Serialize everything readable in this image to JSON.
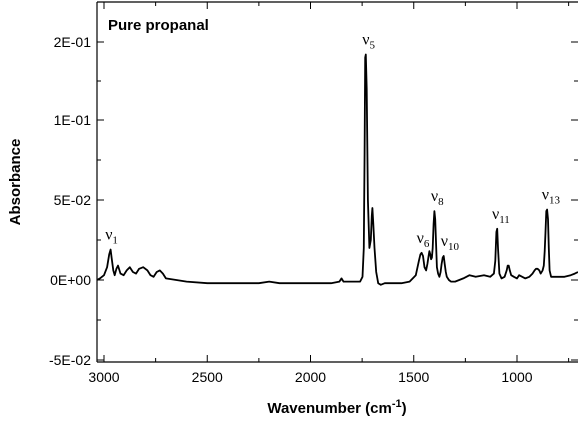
{
  "chart_data": {
    "type": "line",
    "title": "Pure propanal",
    "xlabel": "Wavenumber (cm",
    "xlabel_sup": "-1",
    "xlabel_end": ")",
    "ylabel": "Absorbance",
    "xlim": [
      3050,
      700
    ],
    "ylim": [
      -0.05,
      0.24
    ],
    "x_reversed": true,
    "grid": false,
    "x_ticks": [
      {
        "value": 3000,
        "label": "3000"
      },
      {
        "value": 2500,
        "label": "2500"
      },
      {
        "value": 2000,
        "label": "2000"
      },
      {
        "value": 1500,
        "label": "1500"
      },
      {
        "value": 1000,
        "label": "1000"
      }
    ],
    "y_ticks": [
      {
        "value": -0.05,
        "label": "-5E-02"
      },
      {
        "value": 0.0,
        "label": "0E+00"
      },
      {
        "value": 0.05,
        "label": "5E-02"
      },
      {
        "value": 0.1,
        "label": "1E-01"
      },
      {
        "value": 0.15,
        "label": "2E-01"
      }
    ],
    "series": [
      {
        "color": "#000000",
        "x": [
          3050,
          3020,
          3000,
          2985,
          2975,
          2968,
          2963,
          2955,
          2948,
          2940,
          2932,
          2920,
          2905,
          2890,
          2875,
          2860,
          2845,
          2830,
          2810,
          2790,
          2775,
          2760,
          2745,
          2730,
          2715,
          2700,
          2650,
          2600,
          2500,
          2400,
          2300,
          2250,
          2200,
          2150,
          2100,
          2000,
          1900,
          1860,
          1850,
          1840,
          1800,
          1760,
          1748,
          1742,
          1738,
          1735,
          1732,
          1728,
          1722,
          1715,
          1708,
          1703,
          1700,
          1696,
          1690,
          1682,
          1672,
          1660,
          1640,
          1600,
          1560,
          1520,
          1490,
          1475,
          1468,
          1462,
          1455,
          1448,
          1440,
          1434,
          1428,
          1424,
          1420,
          1416,
          1412,
          1408,
          1404,
          1400,
          1396,
          1392,
          1388,
          1382,
          1376,
          1370,
          1365,
          1360,
          1355,
          1350,
          1345,
          1340,
          1330,
          1320,
          1300,
          1260,
          1230,
          1200,
          1160,
          1130,
          1112,
          1105,
          1100,
          1096,
          1092,
          1085,
          1075,
          1060,
          1050,
          1045,
          1040,
          1035,
          1028,
          1015,
          1000,
          990,
          975,
          960,
          940,
          925,
          915,
          908,
          900,
          892,
          885,
          876,
          870,
          866,
          862,
          858,
          854,
          850,
          846,
          842,
          835,
          820,
          800,
          770,
          740,
          720,
          700
        ],
        "y": [
          0.0,
          0.001,
          0.003,
          0.008,
          0.016,
          0.019,
          0.014,
          0.006,
          0.003,
          0.007,
          0.009,
          0.004,
          0.003,
          0.006,
          0.008,
          0.005,
          0.004,
          0.007,
          0.008,
          0.006,
          0.003,
          0.002,
          0.005,
          0.006,
          0.004,
          0.001,
          0.0,
          -0.001,
          -0.002,
          -0.002,
          -0.002,
          -0.002,
          -0.001,
          -0.002,
          -0.002,
          -0.002,
          -0.002,
          -0.001,
          0.001,
          -0.001,
          -0.001,
          -0.001,
          0.002,
          0.02,
          0.08,
          0.14,
          0.142,
          0.12,
          0.05,
          0.02,
          0.025,
          0.04,
          0.045,
          0.035,
          0.02,
          0.005,
          -0.002,
          -0.003,
          -0.002,
          -0.002,
          -0.002,
          -0.001,
          0.003,
          0.012,
          0.016,
          0.017,
          0.015,
          0.008,
          0.006,
          0.01,
          0.015,
          0.018,
          0.016,
          0.013,
          0.014,
          0.02,
          0.035,
          0.043,
          0.038,
          0.022,
          0.008,
          0.004,
          0.002,
          0.005,
          0.01,
          0.014,
          0.015,
          0.01,
          0.005,
          0.002,
          0.0,
          -0.001,
          -0.001,
          0.001,
          0.003,
          0.002,
          0.003,
          0.002,
          0.004,
          0.012,
          0.03,
          0.032,
          0.02,
          0.004,
          0.001,
          0.002,
          0.006,
          0.009,
          0.009,
          0.006,
          0.003,
          0.002,
          0.001,
          0.003,
          0.002,
          0.001,
          0.002,
          0.004,
          0.006,
          0.007,
          0.007,
          0.006,
          0.004,
          0.006,
          0.009,
          0.018,
          0.03,
          0.043,
          0.044,
          0.038,
          0.02,
          0.006,
          0.002,
          0.002,
          0.002,
          0.002,
          0.003,
          0.004,
          0.005
        ]
      }
    ],
    "annotations": [
      {
        "base": "ν",
        "sub": "1",
        "x": 2970
      },
      {
        "base": "ν",
        "sub": "5",
        "x": 1725
      },
      {
        "base": "ν",
        "sub": "6",
        "x": 1462
      },
      {
        "base": "ν",
        "sub": "8",
        "x": 1393
      },
      {
        "base": "ν",
        "sub": "10",
        "x": 1345
      },
      {
        "base": "ν",
        "sub": "11",
        "x": 1097
      },
      {
        "base": "ν",
        "sub": "13",
        "x": 856
      }
    ]
  }
}
